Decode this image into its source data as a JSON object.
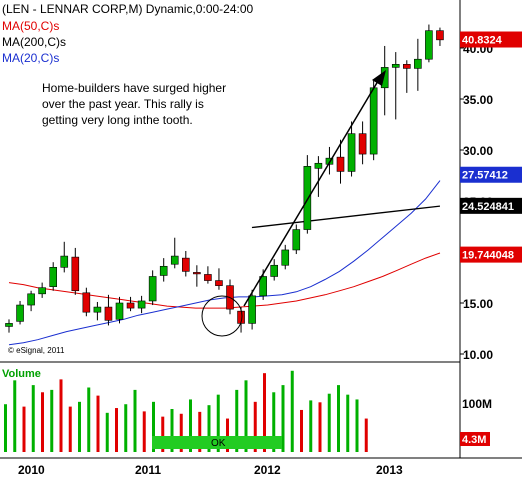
{
  "chart_data": {
    "type": "candlestick",
    "title": "(LEN - LENNAR CORP,M) Dynamic,0:00-24:00",
    "moving_averages": [
      {
        "label": "MA(50,C)s",
        "color": "#e00000",
        "values": [
          17.0,
          16.8,
          16.5,
          16.3,
          16.1,
          15.9,
          15.7,
          15.5,
          15.3,
          15.1,
          14.9,
          14.7,
          14.6,
          14.5,
          14.5,
          14.5,
          14.6,
          14.7,
          14.8,
          15.0,
          15.2,
          15.5,
          15.8,
          16.2,
          16.6,
          17.1,
          17.6,
          18.2,
          18.8,
          19.4,
          19.9
        ]
      },
      {
        "label": "MA(200,C)s",
        "color": "#000000",
        "values": [
          null,
          null,
          null,
          null,
          null,
          null,
          null,
          null,
          null,
          null,
          null,
          null,
          null,
          null,
          null,
          null,
          null,
          null,
          null,
          null,
          null,
          null,
          null,
          null,
          null,
          null,
          null,
          null,
          null,
          null,
          null
        ]
      },
      {
        "label": "MA(20,C)s",
        "color": "#1a2fd0",
        "values": [
          10.9,
          11.1,
          11.4,
          11.8,
          12.2,
          12.5,
          12.8,
          13.1,
          13.4,
          13.8,
          14.1,
          14.4,
          14.7,
          15.0,
          15.3,
          15.5,
          15.6,
          15.6,
          15.7,
          15.8,
          16.1,
          16.6,
          17.3,
          18.1,
          19.1,
          20.2,
          21.4,
          22.6,
          23.8,
          25.2,
          27.0
        ]
      }
    ],
    "ma200_line": [
      {
        "x": 19,
        "y": 22.4
      },
      {
        "x": 30,
        "y": 24.5
      }
    ],
    "candles": [
      {
        "o": 12.7,
        "h": 13.4,
        "l": 12.1,
        "c": 13.0
      },
      {
        "o": 13.2,
        "h": 15.2,
        "l": 12.9,
        "c": 14.8
      },
      {
        "o": 14.8,
        "h": 16.2,
        "l": 14.2,
        "c": 15.9
      },
      {
        "o": 15.9,
        "h": 17.0,
        "l": 15.5,
        "c": 16.5
      },
      {
        "o": 16.6,
        "h": 19.0,
        "l": 16.2,
        "c": 18.5
      },
      {
        "o": 18.5,
        "h": 21.0,
        "l": 18.0,
        "c": 19.6
      },
      {
        "o": 19.5,
        "h": 20.4,
        "l": 15.8,
        "c": 16.2
      },
      {
        "o": 16.0,
        "h": 16.5,
        "l": 13.7,
        "c": 14.1
      },
      {
        "o": 14.1,
        "h": 15.1,
        "l": 13.3,
        "c": 14.6
      },
      {
        "o": 14.6,
        "h": 15.8,
        "l": 12.8,
        "c": 13.3
      },
      {
        "o": 13.4,
        "h": 15.6,
        "l": 13.0,
        "c": 15.0
      },
      {
        "o": 15.0,
        "h": 15.6,
        "l": 14.2,
        "c": 14.5
      },
      {
        "o": 14.5,
        "h": 15.7,
        "l": 14.0,
        "c": 15.2
      },
      {
        "o": 15.2,
        "h": 18.2,
        "l": 14.8,
        "c": 17.6
      },
      {
        "o": 17.7,
        "h": 19.4,
        "l": 17.1,
        "c": 18.6
      },
      {
        "o": 18.8,
        "h": 21.4,
        "l": 18.4,
        "c": 19.6
      },
      {
        "o": 19.4,
        "h": 20.1,
        "l": 17.6,
        "c": 18.1
      },
      {
        "o": 18.0,
        "h": 18.7,
        "l": 16.6,
        "c": 17.9
      },
      {
        "o": 17.8,
        "h": 18.6,
        "l": 16.9,
        "c": 17.2
      },
      {
        "o": 17.2,
        "h": 18.4,
        "l": 16.3,
        "c": 16.7
      },
      {
        "o": 16.7,
        "h": 17.3,
        "l": 13.9,
        "c": 14.4
      },
      {
        "o": 14.2,
        "h": 14.6,
        "l": 12.1,
        "c": 13.0
      },
      {
        "o": 13.0,
        "h": 16.3,
        "l": 12.4,
        "c": 15.7
      },
      {
        "o": 15.7,
        "h": 18.3,
        "l": 15.3,
        "c": 17.6
      },
      {
        "o": 17.6,
        "h": 19.3,
        "l": 17.2,
        "c": 18.7
      },
      {
        "o": 18.7,
        "h": 20.7,
        "l": 18.3,
        "c": 20.2
      },
      {
        "o": 20.2,
        "h": 22.7,
        "l": 19.8,
        "c": 22.2
      },
      {
        "o": 22.2,
        "h": 29.5,
        "l": 21.8,
        "c": 28.4
      },
      {
        "o": 28.2,
        "h": 29.4,
        "l": 25.4,
        "c": 28.7
      },
      {
        "o": 28.6,
        "h": 30.3,
        "l": 27.6,
        "c": 29.2
      },
      {
        "o": 29.3,
        "h": 31.0,
        "l": 26.7,
        "c": 27.9
      }
    ],
    "candles_2012_2013": [
      {
        "o": 27.9,
        "h": 32.8,
        "l": 27.4,
        "c": 31.6
      },
      {
        "o": 31.6,
        "h": 32.8,
        "l": 28.6,
        "c": 29.6
      },
      {
        "o": 29.6,
        "h": 36.8,
        "l": 29.0,
        "c": 36.1
      },
      {
        "o": 36.1,
        "h": 40.2,
        "l": 33.4,
        "c": 38.1
      },
      {
        "o": 38.1,
        "h": 39.6,
        "l": 33.0,
        "c": 38.4
      },
      {
        "o": 38.4,
        "h": 38.8,
        "l": 35.6,
        "c": 38.0
      },
      {
        "o": 38.0,
        "h": 40.9,
        "l": 35.8,
        "c": 38.9
      },
      {
        "o": 38.9,
        "h": 42.3,
        "l": 38.6,
        "c": 41.7
      },
      {
        "o": 41.7,
        "h": 42.0,
        "l": 40.2,
        "c": 40.8
      }
    ],
    "volume": [
      {
        "v": 100,
        "up": true
      },
      {
        "v": 150,
        "up": true
      },
      {
        "v": 95,
        "up": false
      },
      {
        "v": 140,
        "up": true
      },
      {
        "v": 125,
        "up": false
      },
      {
        "v": 130,
        "up": true
      },
      {
        "v": 152,
        "up": false
      },
      {
        "v": 95,
        "up": false
      },
      {
        "v": 105,
        "up": true
      },
      {
        "v": 135,
        "up": true
      },
      {
        "v": 118,
        "up": false
      },
      {
        "v": 82,
        "up": true
      },
      {
        "v": 92,
        "up": false
      },
      {
        "v": 100,
        "up": true
      },
      {
        "v": 130,
        "up": true
      },
      {
        "v": 85,
        "up": false
      },
      {
        "v": 105,
        "up": true
      },
      {
        "v": 74,
        "up": false
      },
      {
        "v": 90,
        "up": true
      },
      {
        "v": 80,
        "up": false
      },
      {
        "v": 110,
        "up": true
      },
      {
        "v": 84,
        "up": false
      },
      {
        "v": 98,
        "up": true
      },
      {
        "v": 120,
        "up": true
      },
      {
        "v": 70,
        "up": false
      },
      {
        "v": 130,
        "up": true
      },
      {
        "v": 150,
        "up": true
      },
      {
        "v": 105,
        "up": false
      },
      {
        "v": 165,
        "up": false
      },
      {
        "v": 125,
        "up": true
      },
      {
        "v": 140,
        "up": true
      },
      {
        "v": 170,
        "up": true
      },
      {
        "v": 88,
        "up": false
      },
      {
        "v": 108,
        "up": true
      },
      {
        "v": 104,
        "up": false
      },
      {
        "v": 122,
        "up": true
      },
      {
        "v": 140,
        "up": true
      },
      {
        "v": 120,
        "up": true
      },
      {
        "v": 110,
        "up": true
      },
      {
        "v": 70,
        "up": false
      }
    ],
    "y_axis": {
      "ticks": [
        10.0,
        15.0,
        20.0,
        25.0,
        30.0,
        35.0,
        40.0
      ],
      "labels": [
        "10.00",
        "15.00",
        "20.00",
        "25.00",
        "30.00",
        "35.00",
        "40.00"
      ],
      "range": [
        9.5,
        43.0
      ]
    },
    "x_axis": {
      "labels": [
        "2010",
        "2011",
        "2012",
        "2013"
      ]
    },
    "value_tags": [
      {
        "label": "40.8324",
        "value": 40.8324,
        "bg": "#e00000",
        "fg": "#ffffff"
      },
      {
        "label": "27.57412",
        "value": 27.57412,
        "bg": "#1a2fd0",
        "fg": "#ffffff"
      },
      {
        "label": "24.524841",
        "value": 24.524841,
        "bg": "#000000",
        "fg": "#ffffff"
      },
      {
        "label": "19.744048",
        "value": 19.744048,
        "bg": "#e00000",
        "fg": "#ffffff"
      }
    ],
    "volume_axis": {
      "label_100m": "100M",
      "tag_4_3m": "4.3M"
    },
    "volume_label": "Volume",
    "annotation_lines": [
      "Home-builders have surged higher",
      "over the past year. This rally is",
      "getting very long inthe tooth."
    ],
    "watermark": "© eSignal, 2011",
    "ok_label": "OK",
    "grid": false,
    "legend_placement": "top-left"
  }
}
